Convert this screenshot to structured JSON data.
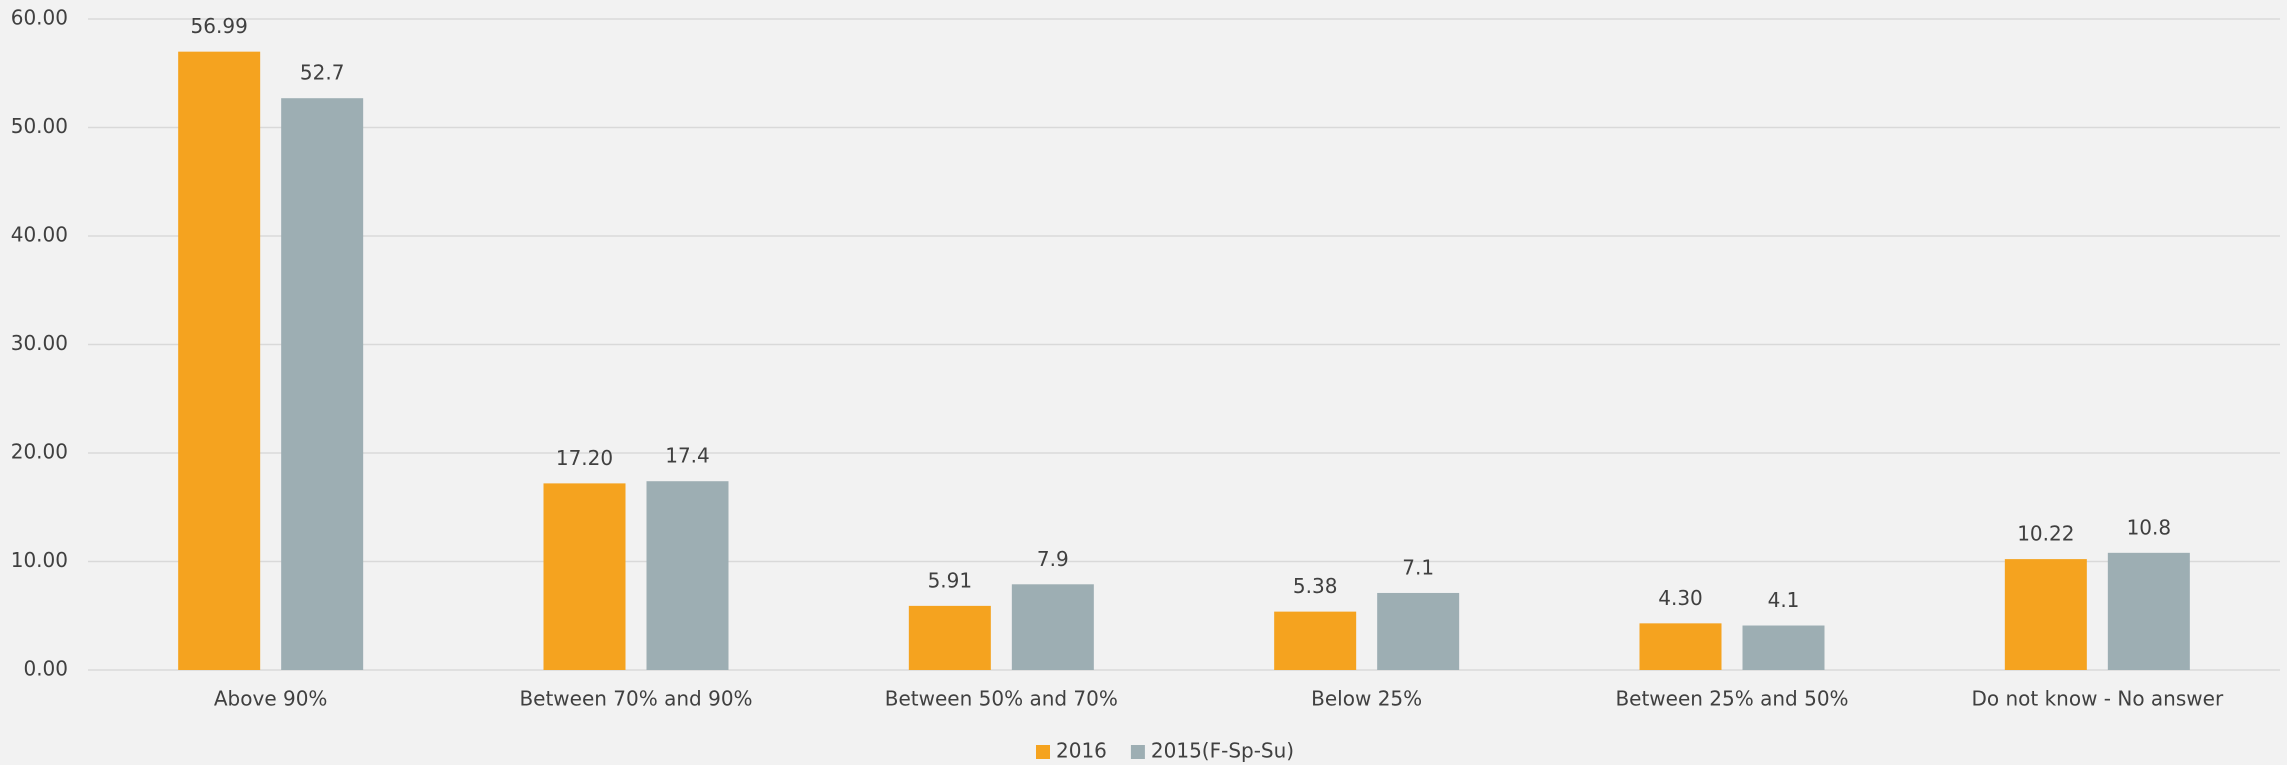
{
  "chart_data": {
    "type": "bar",
    "categories": [
      "Above 90%",
      "Between 70% and 90%",
      "Between 50% and 70%",
      "Below 25%",
      "Between 25% and 50%",
      "Do not know - No answer"
    ],
    "series": [
      {
        "name": "2016",
        "color": "#f5a31f",
        "values": [
          56.99,
          17.2,
          5.91,
          5.38,
          4.3,
          10.22
        ],
        "value_labels": [
          "56.99",
          "17.20",
          "5.91",
          "5.38",
          "4.30",
          "10.22"
        ]
      },
      {
        "name": "2015(F-Sp-Su)",
        "color": "#9daeb3",
        "values": [
          52.7,
          17.4,
          7.9,
          7.1,
          4.1,
          10.8
        ]
      }
    ],
    "ylim": [
      0,
      60
    ],
    "yticks": [
      {
        "value": 0,
        "label": "0.00"
      },
      {
        "value": 10,
        "label": "10.00"
      },
      {
        "value": 20,
        "label": "20.00"
      },
      {
        "value": 30,
        "label": "30.00"
      },
      {
        "value": 40,
        "label": "40.00"
      },
      {
        "value": 50,
        "label": "50.00"
      },
      {
        "value": 60,
        "label": "60.00"
      }
    ],
    "grid": true,
    "legend": "bottom"
  }
}
